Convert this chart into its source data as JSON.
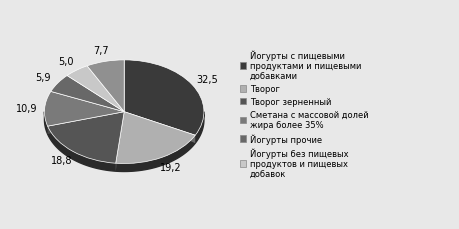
{
  "values": [
    32.5,
    19.2,
    18.8,
    10.9,
    5.9,
    5.0,
    7.7
  ],
  "display_labels": [
    "32,5",
    "19,2",
    "18,8",
    "10,9",
    "5,9",
    "5,0",
    "7,7"
  ],
  "colors": [
    "#3a3a3a",
    "#b0b0b0",
    "#555555",
    "#7a7a7a",
    "#686868",
    "#c8c8c8",
    "#909090"
  ],
  "legend_labels": [
    "Йогурты с пищевыми\nпродуктами и пищевыми\nдобавками",
    "Творог",
    "Творог зерненный",
    "Сметана с массовой долей\nжира более 35%",
    "Йогурты прочие",
    "Йогурты без пищевых\nпродуктов и пищевых\nдобавок"
  ],
  "legend_colors": [
    "#3a3a3a",
    "#b0b0b0",
    "#555555",
    "#7a7a7a",
    "#686868",
    "#c8c8c8"
  ],
  "background_color": "#e8e8e8",
  "text_fontsize": 7,
  "legend_fontsize": 6.0,
  "startangle": 90,
  "depth_color": "#2a2a2a",
  "depth": 0.06
}
